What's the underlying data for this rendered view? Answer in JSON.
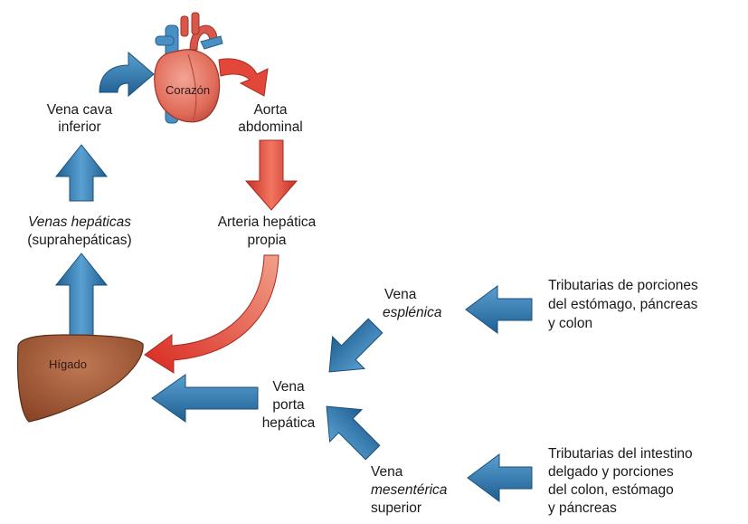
{
  "colors": {
    "blue_arrow": "#3f86bd",
    "blue_arrow_dark": "#1f5f92",
    "red_arrow": "#e3473a",
    "red_arrow_light": "#f2a08a",
    "heart": "#e0705f",
    "liver": "#a5603c"
  },
  "organs": {
    "heart": "Corazón",
    "liver": "Hígado"
  },
  "labels": {
    "vena_cava": [
      "Vena cava",
      "inferior"
    ],
    "aorta": [
      "Aorta",
      "abdominal"
    ],
    "venas_hepaticas": [
      "Venas hepáticas",
      "(suprahepáticas)"
    ],
    "arteria_hepatica": [
      "Arteria hepática",
      "propia"
    ],
    "vena_esplenica": [
      "Vena",
      "esplénica"
    ],
    "vena_porta": [
      "Vena",
      "porta",
      "hepática"
    ],
    "vena_mesenterica": [
      "Vena",
      "mesentérica",
      "superior"
    ],
    "trib_esplenica": [
      "Tributarias de porciones",
      "del estómago, páncreas",
      "y colon"
    ],
    "trib_mesenterica": [
      "Tributarias del intestino",
      "delgado y porciones",
      "del colon, estómago",
      "y páncreas"
    ]
  }
}
